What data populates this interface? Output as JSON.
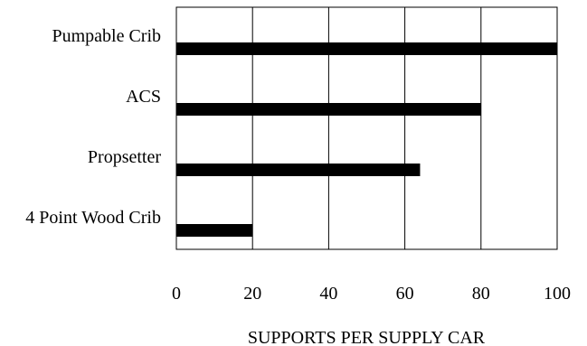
{
  "chart_data": {
    "type": "bar",
    "orientation": "horizontal",
    "categories": [
      "Pumpable Crib",
      "ACS",
      "Propsetter",
      "4 Point Wood Crib"
    ],
    "values": [
      100,
      80,
      64,
      20
    ],
    "title": "",
    "xlabel": "SUPPORTS PER SUPPLY CAR",
    "ylabel": "",
    "xlim": [
      0,
      100
    ],
    "xticks": [
      "0",
      "20",
      "40",
      "60",
      "80",
      "100"
    ],
    "grid": true,
    "legend": "none",
    "bar_color": "#000000",
    "grid_color": "#000000"
  }
}
